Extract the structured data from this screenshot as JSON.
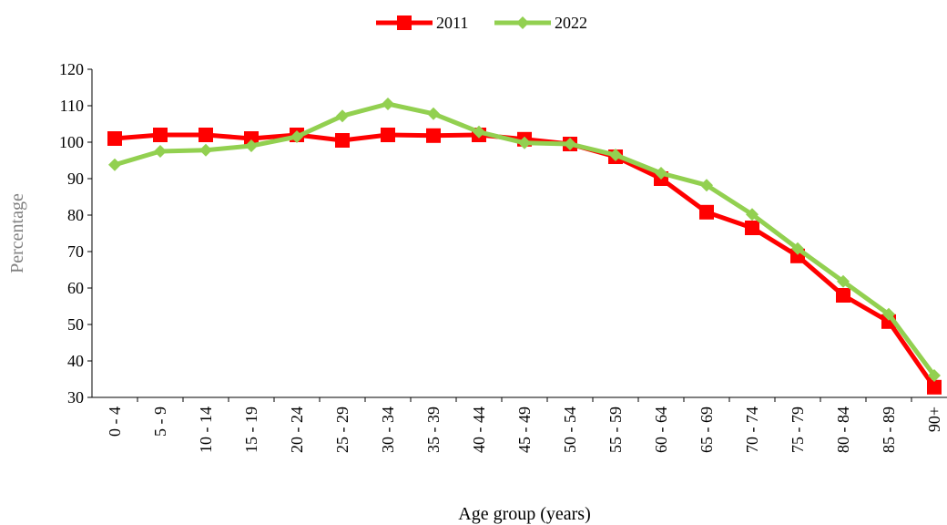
{
  "chart_data": {
    "type": "line",
    "categories": [
      "0 - 4",
      "5 - 9",
      "10 - 14",
      "15 - 19",
      "20 - 24",
      "25 - 29",
      "30 - 34",
      "35 - 39",
      "40 - 44",
      "45 - 49",
      "50 - 54",
      "55 - 59",
      "60 - 64",
      "65 - 69",
      "70 - 74",
      "75 - 79",
      "80 - 84",
      "85 - 89",
      "90+"
    ],
    "series": [
      {
        "name": "2011",
        "color": "#ff0000",
        "marker": "square",
        "values": [
          101,
          102,
          102,
          101,
          102,
          100.5,
          102,
          101.8,
          102,
          100.8,
          99.5,
          96,
          90,
          80.8,
          76.5,
          68.8,
          58,
          50.8,
          32.8
        ]
      },
      {
        "name": "2022",
        "color": "#92d050",
        "marker": "diamond",
        "values": [
          93.8,
          97.5,
          97.8,
          99,
          101.5,
          107.2,
          110.5,
          107.8,
          102.8,
          99.8,
          99.5,
          96.5,
          91.5,
          88.2,
          80.2,
          70.8,
          61.8,
          52.8,
          36
        ]
      }
    ],
    "ylim": [
      30,
      120
    ],
    "yticks": [
      30,
      40,
      50,
      60,
      70,
      80,
      90,
      100,
      110,
      120
    ],
    "y_label": "Percentage",
    "x_label": "Age group (years)",
    "legend": "top"
  }
}
